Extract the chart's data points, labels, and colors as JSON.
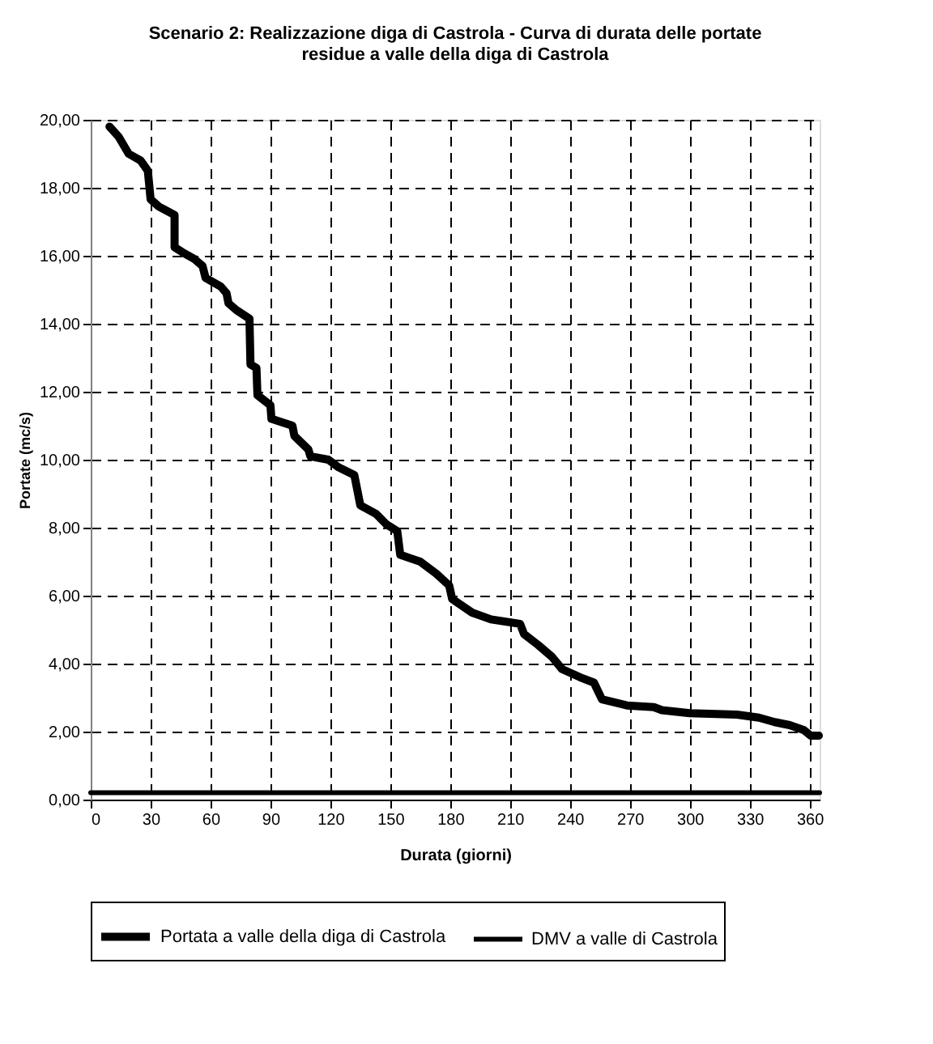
{
  "chart_data": {
    "type": "line",
    "title": [
      "Scenario 2: Realizzazione diga di Castrola - Curva di durata delle portate",
      "residue a valle della diga di Castrola"
    ],
    "xlabel": "Durata (giorni)",
    "ylabel": "Portate (mc/s)",
    "series": [
      {
        "name": "Portata a valle della diga di Castrola",
        "color": "#000000",
        "x": [
          9.4,
          14,
          19,
          25,
          28.6,
          30,
          34,
          42,
          42,
          46,
          52,
          56,
          57.5,
          65,
          68,
          69,
          73,
          79.5,
          80,
          83,
          83.5,
          90,
          90.5,
          101,
          102,
          109,
          110,
          119,
          124,
          132,
          135,
          143,
          148,
          153.5,
          155,
          165,
          173,
          179.5,
          181,
          191,
          200.5,
          215,
          217,
          224,
          231,
          236,
          245,
          252,
          256,
          268.5,
          282,
          286,
          300,
          323.6,
          334.6,
          342.5,
          350,
          357,
          360.6,
          364.6
        ],
        "values": [
          19.8,
          19.5,
          19.0,
          18.8,
          18.5,
          17.66,
          17.45,
          17.2,
          16.25,
          16.1,
          15.9,
          15.7,
          15.35,
          15.1,
          14.9,
          14.6,
          14.4,
          14.15,
          12.8,
          12.7,
          11.9,
          11.6,
          11.2,
          11.0,
          10.7,
          10.3,
          10.1,
          10.0,
          9.78,
          9.55,
          8.66,
          8.4,
          8.1,
          7.9,
          7.2,
          7.0,
          6.65,
          6.3,
          5.9,
          5.5,
          5.3,
          5.17,
          4.87,
          4.55,
          4.2,
          3.84,
          3.6,
          3.44,
          2.95,
          2.77,
          2.72,
          2.63,
          2.54,
          2.5,
          2.41,
          2.28,
          2.19,
          2.05,
          1.88,
          1.88
        ]
      },
      {
        "name": "DMV a valle di Castrola",
        "color": "#000000",
        "x": [
          0,
          365
        ],
        "values": [
          0.2,
          0.2
        ]
      }
    ],
    "xlim": [
      0,
      365
    ],
    "xticks": [
      0,
      30,
      60,
      90,
      120,
      150,
      180,
      210,
      240,
      270,
      300,
      330,
      360
    ],
    "ylim": [
      0,
      20
    ],
    "yticks": [
      {
        "value": 0,
        "label": "0,00"
      },
      {
        "value": 2,
        "label": "2,00"
      },
      {
        "value": 4,
        "label": "4,00"
      },
      {
        "value": 6,
        "label": "6,00"
      },
      {
        "value": 8,
        "label": "8,00"
      },
      {
        "value": 10,
        "label": "10,00"
      },
      {
        "value": 12,
        "label": "12,00"
      },
      {
        "value": 14,
        "label": "14,00"
      },
      {
        "value": 16,
        "label": "16,00"
      },
      {
        "value": 18,
        "label": "18,00"
      },
      {
        "value": 20,
        "label": "20,00"
      }
    ],
    "grid": true,
    "legend": "bottom",
    "line_style": "solid",
    "marker": "none"
  }
}
